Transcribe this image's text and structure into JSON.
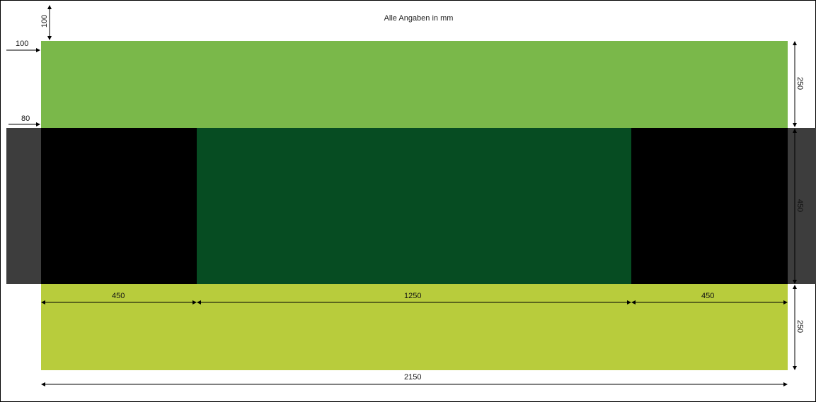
{
  "diagram": {
    "title": "Alle Angaben in mm",
    "dimensions": {
      "top_offset": "100",
      "left_offset": "100",
      "side_strip": "80",
      "top_band_height": "250",
      "middle_band_height": "450",
      "bottom_band_height": "250",
      "left_black_width": "450",
      "center_width": "1250",
      "right_black_width": "450",
      "total_width": "2150"
    },
    "colors": {
      "top_band": "#7ab84a",
      "middle_center": "#064c22",
      "black_blocks": "#000000",
      "side_strips": "#3d3d3d",
      "bottom_band": "#b8cc3c"
    }
  }
}
